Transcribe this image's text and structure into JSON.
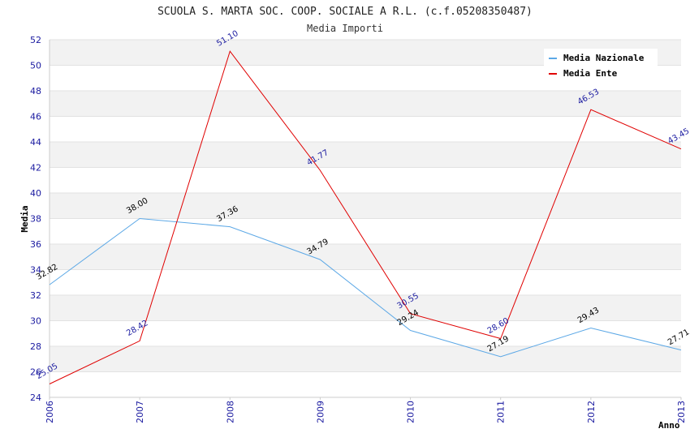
{
  "chart_data": {
    "type": "line",
    "title": "SCUOLA S. MARTA SOC. COOP. SOCIALE A R.L. (c.f.05208350487)",
    "subtitle": "Media Importi",
    "xlabel": "Anno",
    "ylabel": "Media",
    "x": [
      "2006",
      "2007",
      "2008",
      "2009",
      "2010",
      "2011",
      "2012",
      "2013"
    ],
    "ylim": [
      24,
      52
    ],
    "yticks": [
      24,
      26,
      28,
      30,
      32,
      34,
      36,
      38,
      40,
      42,
      44,
      46,
      48,
      50,
      52
    ],
    "grid": "horizontal-bands",
    "legend_position": "top-right",
    "series": [
      {
        "name": "Media Nazionale",
        "color": "#5ca8e6",
        "values": [
          32.82,
          38.0,
          37.36,
          34.79,
          29.24,
          27.19,
          29.43,
          27.71
        ],
        "labels": [
          "32.82",
          "38.00",
          "37.36",
          "34.79",
          "29.24",
          "27.19",
          "29.43",
          "27.71"
        ]
      },
      {
        "name": "Media Ente",
        "color": "#e00000",
        "values": [
          25.05,
          28.42,
          51.1,
          41.77,
          30.55,
          28.6,
          46.53,
          43.45
        ],
        "labels": [
          "25.05",
          "28.42",
          "51.10",
          "41.77",
          "30.55",
          "28.60",
          "46.53",
          "43.45"
        ]
      }
    ]
  }
}
